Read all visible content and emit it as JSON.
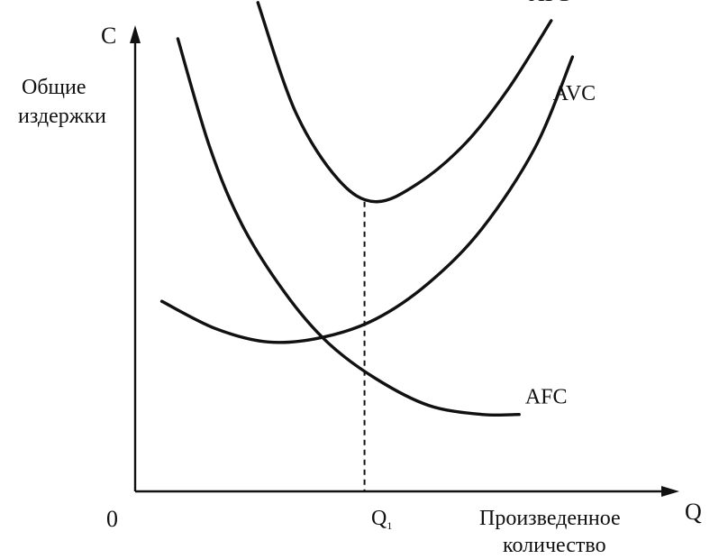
{
  "chart_data": {
    "type": "line",
    "y_axis_symbol": "C",
    "ylabel_line1": "Общие",
    "ylabel_line2": "издержки",
    "x_axis_symbol": "Q",
    "xlabel_line1": "Произведенное",
    "xlabel_line2": "количество",
    "origin_label": "0",
    "q1_label": "Q",
    "q1_subscript": "1",
    "grid": false,
    "legend": "none",
    "xlim": [
      0,
      10
    ],
    "ylim": [
      0,
      10
    ],
    "marker": {
      "x": 4.3,
      "y": 6.4
    },
    "series": [
      {
        "name": "ATC",
        "x": [
          2.3,
          3.0,
          3.8,
          4.5,
          5.3,
          6.2,
          7.0,
          7.8
        ],
        "y": [
          10.8,
          8.4,
          6.9,
          6.4,
          6.8,
          7.7,
          8.9,
          10.4
        ]
      },
      {
        "name": "AVC",
        "x": [
          0.5,
          1.5,
          2.5,
          3.5,
          4.5,
          5.5,
          6.5,
          7.5,
          8.2
        ],
        "y": [
          4.2,
          3.6,
          3.3,
          3.4,
          3.8,
          4.6,
          5.8,
          7.6,
          9.6
        ]
      },
      {
        "name": "AFC",
        "x": [
          0.8,
          1.4,
          2.0,
          2.8,
          3.6,
          4.5,
          5.5,
          6.5,
          7.2
        ],
        "y": [
          10.0,
          7.6,
          5.9,
          4.4,
          3.3,
          2.5,
          1.9,
          1.7,
          1.7
        ]
      }
    ]
  }
}
